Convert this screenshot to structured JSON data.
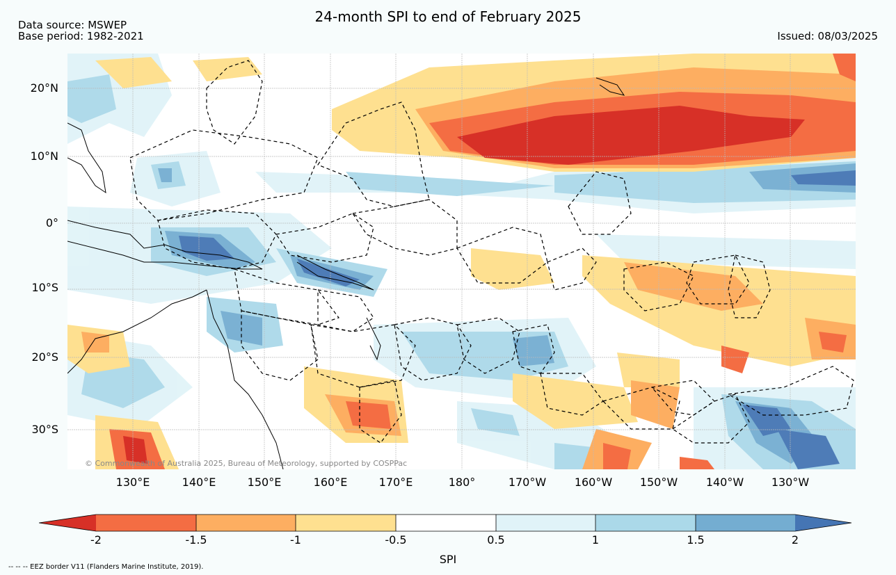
{
  "title": "24-month SPI to end of February 2025",
  "data_source": "Data source: MSWEP",
  "base_period": "Base period: 1982-2021",
  "issued": "Issued: 08/03/2025",
  "copyright": "© Commonwealth of Australia 2025, Bureau of Meteorology, supported by COSPPac",
  "eez_note": "--  --  -- EEZ border V11 (Flanders Marine Institute, 2019).",
  "lat_labels": [
    "20°N",
    "10°N",
    "0°",
    "10°S",
    "20°S",
    "30°S"
  ],
  "lon_labels": [
    "130°E",
    "140°E",
    "150°E",
    "160°E",
    "170°E",
    "180°",
    "170°W",
    "160°W",
    "150°W",
    "140°W",
    "130°W"
  ],
  "colorbar": {
    "label": "SPI",
    "ticks": [
      "-2",
      "-1.5",
      "-1",
      "-0.5",
      "0.5",
      "1",
      "1.5",
      "2"
    ],
    "colors": [
      "#d73027",
      "#f46d43",
      "#fdae61",
      "#fee090",
      "#ffffff",
      "#e0f3f8",
      "#abd9e9",
      "#74add1",
      "#4575b4"
    ]
  }
}
